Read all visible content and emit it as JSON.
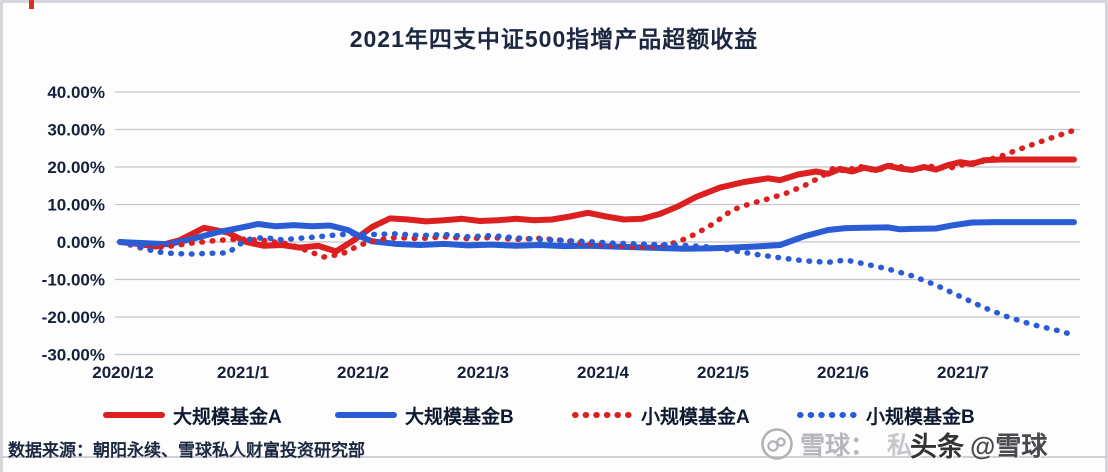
{
  "title": "2021年四支中证500指增产品超额收益",
  "source_note": "数据来源：朝阳永续、雪球私人财富投资研究部",
  "watermark": {
    "logo": "xueqiu-snowball-logo",
    "prefix_light": "雪球：",
    "faint": "私",
    "bold": "头条",
    "suffix": "@雪球"
  },
  "colors": {
    "red_series": "#dc2020",
    "blue_series": "#2a5cd5",
    "gridline": "#c6c6cc",
    "axis_text": "#15203a",
    "title_text": "#1c2740"
  },
  "legend": [
    {
      "label": "大规模基金A",
      "color": "#dc2020",
      "style": "solid"
    },
    {
      "label": "大规模基金B",
      "color": "#2a5cd5",
      "style": "solid"
    },
    {
      "label": "小规模基金A",
      "color": "#dc2020",
      "style": "dotted"
    },
    {
      "label": "小规模基金B",
      "color": "#2a5cd5",
      "style": "dotted"
    }
  ],
  "chart_data": {
    "type": "line",
    "title": "2021年四支中证500指增产品超额收益",
    "x_axis": {
      "labels": [
        "2020/12",
        "2021/1",
        "2021/2",
        "2021/3",
        "2021/4",
        "2021/5",
        "2021/6",
        "2021/7"
      ],
      "unit": "month"
    },
    "y_axis": {
      "labels": [
        "40.00%",
        "30.00%",
        "20.00%",
        "10.00%",
        "0.00%",
        "-10.00%",
        "-20.00%",
        "-30.00%"
      ],
      "values": [
        40,
        30,
        20,
        10,
        0,
        -10,
        -20,
        -30
      ],
      "min": -30,
      "max": 40,
      "grid": true
    },
    "legend_position": "bottom",
    "series": [
      {
        "name": "大规模基金A",
        "color": "#dc2020",
        "style": "solid",
        "points": [
          [
            0,
            0
          ],
          [
            0.15,
            -0.5
          ],
          [
            0.3,
            -1.2
          ],
          [
            0.5,
            0.5
          ],
          [
            0.7,
            3.8
          ],
          [
            0.9,
            2.5
          ],
          [
            1.05,
            0
          ],
          [
            1.2,
            -1
          ],
          [
            1.35,
            -0.8
          ],
          [
            1.5,
            -1.5
          ],
          [
            1.65,
            -1
          ],
          [
            1.8,
            -2.5
          ],
          [
            1.95,
            0.5
          ],
          [
            2.1,
            4
          ],
          [
            2.25,
            6.3
          ],
          [
            2.4,
            6
          ],
          [
            2.55,
            5.5
          ],
          [
            2.7,
            5.8
          ],
          [
            2.85,
            6.2
          ],
          [
            3.0,
            5.6
          ],
          [
            3.15,
            5.8
          ],
          [
            3.3,
            6.2
          ],
          [
            3.45,
            5.8
          ],
          [
            3.6,
            6.0
          ],
          [
            3.75,
            6.8
          ],
          [
            3.9,
            7.8
          ],
          [
            4.05,
            6.8
          ],
          [
            4.2,
            6.0
          ],
          [
            4.35,
            6.2
          ],
          [
            4.5,
            7.5
          ],
          [
            4.65,
            9.5
          ],
          [
            4.8,
            12
          ],
          [
            5.0,
            14.5
          ],
          [
            5.2,
            16
          ],
          [
            5.4,
            17
          ],
          [
            5.5,
            16.5
          ],
          [
            5.65,
            18
          ],
          [
            5.8,
            18.8
          ],
          [
            5.9,
            18.2
          ],
          [
            6.0,
            19.5
          ],
          [
            6.1,
            18.8
          ],
          [
            6.2,
            19.8
          ],
          [
            6.3,
            19.2
          ],
          [
            6.4,
            20.3
          ],
          [
            6.5,
            19.6
          ],
          [
            6.6,
            19.2
          ],
          [
            6.7,
            20
          ],
          [
            6.8,
            19.3
          ],
          [
            6.9,
            20.5
          ],
          [
            7.0,
            21.3
          ],
          [
            7.1,
            20.8
          ],
          [
            7.2,
            21.8
          ],
          [
            7.35,
            22
          ],
          [
            7.6,
            22
          ],
          [
            7.95,
            22
          ]
        ]
      },
      {
        "name": "大规模基金B",
        "color": "#2a5cd5",
        "style": "solid",
        "points": [
          [
            0,
            0
          ],
          [
            0.2,
            -0.3
          ],
          [
            0.4,
            -0.6
          ],
          [
            0.6,
            0.8
          ],
          [
            0.8,
            2.5
          ],
          [
            1.0,
            3.8
          ],
          [
            1.15,
            4.8
          ],
          [
            1.3,
            4.2
          ],
          [
            1.45,
            4.5
          ],
          [
            1.6,
            4.2
          ],
          [
            1.75,
            4.4
          ],
          [
            1.9,
            3.2
          ],
          [
            2.0,
            1.5
          ],
          [
            2.1,
            0.2
          ],
          [
            2.3,
            -0.5
          ],
          [
            2.5,
            -0.8
          ],
          [
            2.7,
            -0.5
          ],
          [
            2.9,
            -0.9
          ],
          [
            3.1,
            -0.7
          ],
          [
            3.3,
            -1
          ],
          [
            3.5,
            -0.8
          ],
          [
            3.7,
            -1.1
          ],
          [
            3.9,
            -1
          ],
          [
            4.1,
            -1.2
          ],
          [
            4.3,
            -1.4
          ],
          [
            4.5,
            -1.6
          ],
          [
            4.7,
            -1.8
          ],
          [
            4.9,
            -1.7
          ],
          [
            5.1,
            -1.5
          ],
          [
            5.3,
            -1.2
          ],
          [
            5.5,
            -0.8
          ],
          [
            5.7,
            1.5
          ],
          [
            5.9,
            3.2
          ],
          [
            6.05,
            3.7
          ],
          [
            6.2,
            3.8
          ],
          [
            6.4,
            3.9
          ],
          [
            6.5,
            3.4
          ],
          [
            6.6,
            3.5
          ],
          [
            6.8,
            3.6
          ],
          [
            6.95,
            4.5
          ],
          [
            7.1,
            5.2
          ],
          [
            7.3,
            5.3
          ],
          [
            7.6,
            5.3
          ],
          [
            7.95,
            5.3
          ]
        ]
      },
      {
        "name": "小规模基金A",
        "color": "#dc2020",
        "style": "dotted",
        "points": [
          [
            0,
            0
          ],
          [
            0.2,
            -1.8
          ],
          [
            0.4,
            -1.2
          ],
          [
            0.6,
            -0.3
          ],
          [
            0.8,
            0.4
          ],
          [
            1.0,
            0.8
          ],
          [
            1.2,
            0.4
          ],
          [
            1.4,
            -0.5
          ],
          [
            1.55,
            -2.2
          ],
          [
            1.7,
            -4
          ],
          [
            1.85,
            -3.2
          ],
          [
            2.0,
            -0.8
          ],
          [
            2.15,
            0.6
          ],
          [
            2.3,
            1.2
          ],
          [
            2.5,
            0.9
          ],
          [
            2.7,
            1.4
          ],
          [
            2.9,
            0.9
          ],
          [
            3.1,
            1.2
          ],
          [
            3.3,
            0.7
          ],
          [
            3.5,
            1.0
          ],
          [
            3.7,
            0.4
          ],
          [
            3.9,
            -0.4
          ],
          [
            4.1,
            -0.9
          ],
          [
            4.3,
            -1.4
          ],
          [
            4.5,
            -1.1
          ],
          [
            4.65,
            0
          ],
          [
            4.8,
            2.2
          ],
          [
            4.95,
            5
          ],
          [
            5.1,
            8.5
          ],
          [
            5.25,
            10.2
          ],
          [
            5.4,
            11.5
          ],
          [
            5.55,
            13
          ],
          [
            5.7,
            15
          ],
          [
            5.85,
            17.5
          ],
          [
            5.95,
            19.8
          ],
          [
            6.05,
            18.8
          ],
          [
            6.15,
            20.3
          ],
          [
            6.3,
            19
          ],
          [
            6.45,
            20.6
          ],
          [
            6.6,
            19.2
          ],
          [
            6.75,
            20.2
          ],
          [
            6.9,
            19.6
          ],
          [
            7.05,
            20.8
          ],
          [
            7.2,
            21.6
          ],
          [
            7.35,
            23
          ],
          [
            7.5,
            24.8
          ],
          [
            7.65,
            26.5
          ],
          [
            7.8,
            28.2
          ],
          [
            7.95,
            29.8
          ]
        ]
      },
      {
        "name": "小规模基金B",
        "color": "#2a5cd5",
        "style": "dotted",
        "points": [
          [
            0,
            0
          ],
          [
            0.15,
            -1.2
          ],
          [
            0.3,
            -2.6
          ],
          [
            0.45,
            -3.1
          ],
          [
            0.6,
            -3.2
          ],
          [
            0.75,
            -3.0
          ],
          [
            0.9,
            -2.9
          ],
          [
            1.05,
            0.6
          ],
          [
            1.2,
            1.2
          ],
          [
            1.35,
            0.6
          ],
          [
            1.5,
            1.0
          ],
          [
            1.65,
            1.4
          ],
          [
            1.8,
            1.9
          ],
          [
            1.95,
            2.2
          ],
          [
            2.1,
            2.0
          ],
          [
            2.3,
            2.2
          ],
          [
            2.5,
            1.7
          ],
          [
            2.7,
            2.0
          ],
          [
            2.9,
            1.4
          ],
          [
            3.1,
            1.7
          ],
          [
            3.3,
            1.1
          ],
          [
            3.5,
            0.7
          ],
          [
            3.7,
            0.4
          ],
          [
            3.9,
            0.1
          ],
          [
            4.1,
            -0.3
          ],
          [
            4.3,
            -0.5
          ],
          [
            4.5,
            -0.7
          ],
          [
            4.7,
            -0.9
          ],
          [
            4.9,
            -1.3
          ],
          [
            5.1,
            -2.2
          ],
          [
            5.3,
            -3.3
          ],
          [
            5.5,
            -4.2
          ],
          [
            5.7,
            -5.0
          ],
          [
            5.9,
            -5.4
          ],
          [
            6.05,
            -4.8
          ],
          [
            6.2,
            -5.8
          ],
          [
            6.4,
            -7.2
          ],
          [
            6.6,
            -9.0
          ],
          [
            6.8,
            -11.5
          ],
          [
            7.0,
            -14.5
          ],
          [
            7.2,
            -17.5
          ],
          [
            7.4,
            -20
          ],
          [
            7.6,
            -22
          ],
          [
            7.8,
            -23.5
          ],
          [
            7.95,
            -24.8
          ]
        ]
      }
    ]
  }
}
